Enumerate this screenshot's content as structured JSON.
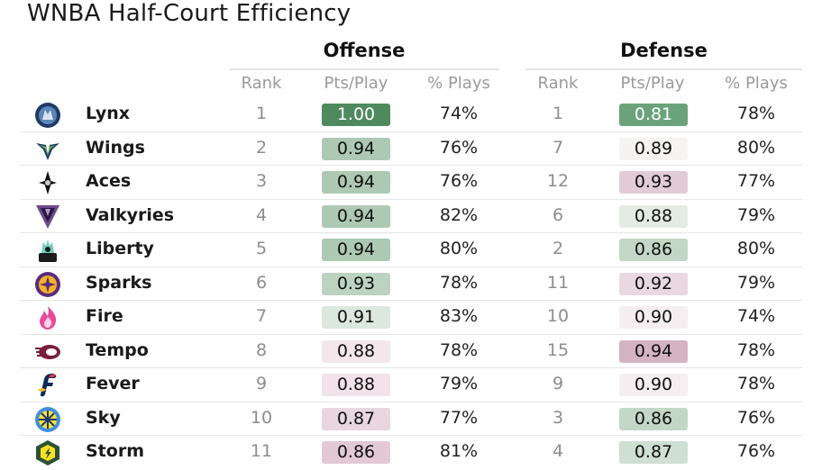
{
  "title": "WNBA Half-Court Efficiency",
  "groups": {
    "offense": "Offense",
    "defense": "Defense"
  },
  "columns": {
    "rank": "Rank",
    "ppp": "Pts/Play",
    "pct": "% Plays"
  },
  "chart_data": {
    "type": "table",
    "title": "WNBA Half-Court Efficiency",
    "column_groups": [
      "Offense",
      "Defense"
    ],
    "columns": [
      "Rank",
      "Pts/Play",
      "% Plays"
    ],
    "rows": [
      {
        "team": "Lynx",
        "logo": "lynx-logo-icon",
        "off": {
          "rank": "1",
          "ppp": "1.00",
          "pct": "74%",
          "color": "#4e8a5e"
        },
        "def": {
          "rank": "1",
          "ppp": "0.81",
          "pct": "78%",
          "color": "#6aa37a"
        }
      },
      {
        "team": "Wings",
        "logo": "wings-logo-icon",
        "off": {
          "rank": "2",
          "ppp": "0.94",
          "pct": "76%",
          "color": "#adc9b3"
        },
        "def": {
          "rank": "7",
          "ppp": "0.89",
          "pct": "80%",
          "color": "#f5f4f3"
        }
      },
      {
        "team": "Aces",
        "logo": "aces-logo-icon",
        "off": {
          "rank": "3",
          "ppp": "0.94",
          "pct": "76%",
          "color": "#adc9b3"
        },
        "def": {
          "rank": "12",
          "ppp": "0.93",
          "pct": "77%",
          "color": "#e2cbd6"
        }
      },
      {
        "team": "Valkyries",
        "logo": "valkyries-logo-icon",
        "off": {
          "rank": "4",
          "ppp": "0.94",
          "pct": "82%",
          "color": "#adc9b3"
        },
        "def": {
          "rank": "6",
          "ppp": "0.88",
          "pct": "79%",
          "color": "#e3ebe4"
        }
      },
      {
        "team": "Liberty",
        "logo": "liberty-logo-icon",
        "off": {
          "rank": "5",
          "ppp": "0.94",
          "pct": "80%",
          "color": "#adc9b3"
        },
        "def": {
          "rank": "2",
          "ppp": "0.86",
          "pct": "80%",
          "color": "#c2d7c6"
        }
      },
      {
        "team": "Sparks",
        "logo": "sparks-logo-icon",
        "off": {
          "rank": "6",
          "ppp": "0.93",
          "pct": "78%",
          "color": "#bcd3c1"
        },
        "def": {
          "rank": "11",
          "ppp": "0.92",
          "pct": "79%",
          "color": "#ead8e0"
        }
      },
      {
        "team": "Fire",
        "logo": "fire-logo-icon",
        "off": {
          "rank": "7",
          "ppp": "0.91",
          "pct": "83%",
          "color": "#dce7de"
        },
        "def": {
          "rank": "10",
          "ppp": "0.90",
          "pct": "74%",
          "color": "#f5eef1"
        }
      },
      {
        "team": "Tempo",
        "logo": "tempo-logo-icon",
        "off": {
          "rank": "8",
          "ppp": "0.88",
          "pct": "78%",
          "color": "#f3e7ec"
        },
        "def": {
          "rank": "15",
          "ppp": "0.94",
          "pct": "78%",
          "color": "#d4b3c3"
        }
      },
      {
        "team": "Fever",
        "logo": "fever-logo-icon",
        "off": {
          "rank": "9",
          "ppp": "0.88",
          "pct": "79%",
          "color": "#f1e3e9"
        },
        "def": {
          "rank": "9",
          "ppp": "0.90",
          "pct": "78%",
          "color": "#f5eef1"
        }
      },
      {
        "team": "Sky",
        "logo": "sky-logo-icon",
        "off": {
          "rank": "10",
          "ppp": "0.87",
          "pct": "77%",
          "color": "#e9d6df"
        },
        "def": {
          "rank": "3",
          "ppp": "0.86",
          "pct": "76%",
          "color": "#c2d7c6"
        }
      },
      {
        "team": "Storm",
        "logo": "storm-logo-icon",
        "off": {
          "rank": "11",
          "ppp": "0.86",
          "pct": "81%",
          "color": "#e2c9d5"
        },
        "def": {
          "rank": "4",
          "ppp": "0.87",
          "pct": "76%",
          "color": "#cfdfd2"
        }
      }
    ]
  }
}
